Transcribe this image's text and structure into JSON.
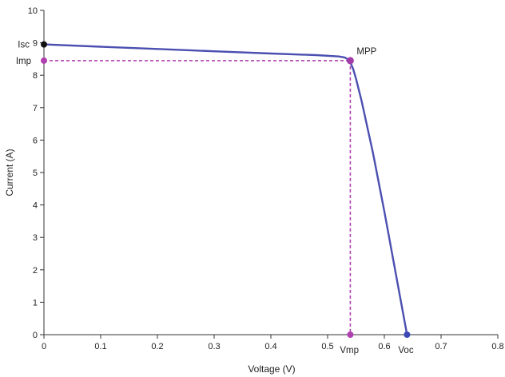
{
  "chart_data": {
    "type": "line",
    "xlabel": "Voltage (V)",
    "ylabel": "Current (A)",
    "xlim": [
      0,
      0.8
    ],
    "ylim": [
      0,
      10
    ],
    "x_ticks": [
      "0",
      "0.1",
      "0.2",
      "0.3",
      "0.4",
      "0.5",
      "0.6",
      "0.7",
      "0.8"
    ],
    "y_ticks": [
      "0",
      "1",
      "2",
      "3",
      "4",
      "5",
      "6",
      "7",
      "8",
      "9",
      "10"
    ],
    "grid": false,
    "series": [
      {
        "color": "#4b4fb0",
        "x": [
          0,
          0.1,
          0.2,
          0.3,
          0.4,
          0.48,
          0.52,
          0.53,
          0.535,
          0.54,
          0.545,
          0.55,
          0.56,
          0.58,
          0.6,
          0.62,
          0.64
        ],
        "y": [
          8.95,
          8.88,
          8.81,
          8.74,
          8.67,
          8.62,
          8.58,
          8.55,
          8.5,
          8.4,
          8.2,
          7.9,
          7.2,
          5.6,
          3.8,
          1.9,
          0
        ]
      }
    ],
    "annotations": {
      "isc": {
        "label": "Isc",
        "x": 0,
        "y": 8.95,
        "color": "#111111"
      },
      "imp": {
        "label": "Imp",
        "y": 8.45
      },
      "vmp": {
        "label": "Vmp",
        "x": 0.54
      },
      "mpp": {
        "label": "MPP",
        "x": 0.54,
        "y": 8.45,
        "color": "#a23aa8"
      },
      "voc": {
        "label": "Voc",
        "x": 0.64,
        "y": 0,
        "color": "#3b48b6"
      },
      "guide_color": "#b040b0"
    }
  }
}
